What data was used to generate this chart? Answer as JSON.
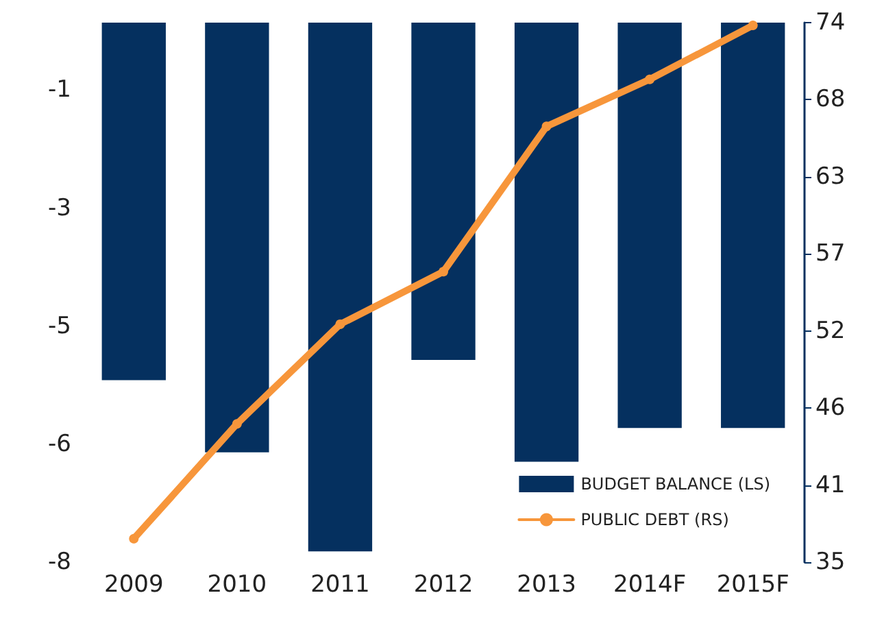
{
  "chart_data": {
    "type": "bar",
    "categories": [
      "2009",
      "2010",
      "2011",
      "2012",
      "2013",
      "2014F",
      "2015F"
    ],
    "series": [
      {
        "name": "BUDGET BALANCE (LS)",
        "color": "#05305f",
        "values": [
          -5.3,
          -6.37,
          -7.84,
          -5.0,
          -6.51,
          -6.01,
          -6.01
        ]
      },
      {
        "name": "PUBLIC DEBT (RS)",
        "type": "line",
        "axis": "y2",
        "color": "#f7963b",
        "values": [
          36.7,
          45.0,
          52.2,
          56.0,
          66.5,
          69.9,
          73.8
        ]
      }
    ],
    "ylim": [
      -8,
      0
    ],
    "yticks": [
      -8,
      {
        "value": -6.25,
        "label": "-6"
      },
      {
        "value": -4.5,
        "label": "-5"
      },
      {
        "value": -2.75,
        "label": "-3"
      },
      -1
    ],
    "y2lim": [
      35,
      74
    ],
    "y2ticks": [
      35,
      {
        "value": 40.57,
        "label": "41"
      },
      {
        "value": 46.14,
        "label": "46"
      },
      {
        "value": 51.71,
        "label": "52"
      },
      {
        "value": 57.29,
        "label": "57"
      },
      {
        "value": 62.86,
        "label": "63"
      },
      {
        "value": 68.43,
        "label": "68"
      },
      74
    ],
    "legend": "bottom right",
    "marker": "circle",
    "grid": false
  }
}
